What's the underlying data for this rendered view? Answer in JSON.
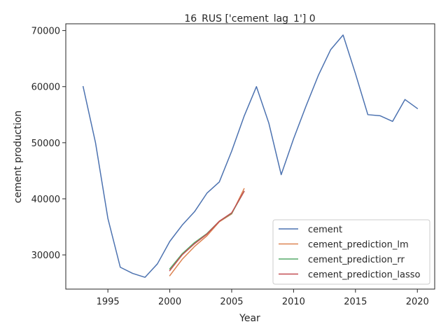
{
  "chart_data": {
    "type": "line",
    "title": "16_RUS ['cement_lag_1'] 0",
    "xlabel": "Year",
    "ylabel": "cement production",
    "xlim": [
      1991.6,
      2021.4
    ],
    "ylim": [
      23900,
      71200
    ],
    "xticks": [
      1995,
      2000,
      2005,
      2010,
      2015,
      2020
    ],
    "yticks": [
      30000,
      40000,
      50000,
      60000,
      70000
    ],
    "grid": false,
    "legend_position": "lower-right",
    "series": [
      {
        "name": "cement",
        "color": "#4c72b0",
        "x": [
          1993,
          1994,
          1995,
          1996,
          1997,
          1998,
          1999,
          2000,
          2001,
          2002,
          2003,
          2004,
          2005,
          2006,
          2007,
          2008,
          2009,
          2010,
          2011,
          2012,
          2013,
          2014,
          2015,
          2016,
          2017,
          2018,
          2019,
          2020
        ],
        "y": [
          60000,
          50000,
          36500,
          27800,
          26700,
          26000,
          28400,
          32400,
          35300,
          37700,
          41000,
          43000,
          48500,
          54700,
          60000,
          53500,
          44300,
          50700,
          56500,
          62000,
          66600,
          69200,
          62300,
          55000,
          54800,
          53800,
          57700,
          56100
        ]
      },
      {
        "name": "cement_prediction_lm",
        "color": "#dd8452",
        "x": [
          2000,
          2001,
          2002,
          2003,
          2004,
          2005,
          2006
        ],
        "y": [
          26300,
          29200,
          31500,
          33400,
          35900,
          37300,
          41800
        ]
      },
      {
        "name": "cement_prediction_rr",
        "color": "#55a868",
        "x": [
          2000,
          2001,
          2002,
          2003,
          2004,
          2005,
          2006
        ],
        "y": [
          27500,
          30200,
          32200,
          33800,
          36000,
          37400,
          41300
        ]
      },
      {
        "name": "cement_prediction_lasso",
        "color": "#c44e52",
        "x": [
          2000,
          2001,
          2002,
          2003,
          2004,
          2005,
          2006
        ],
        "y": [
          27200,
          30000,
          32000,
          33700,
          36000,
          37500,
          41300
        ]
      }
    ]
  }
}
